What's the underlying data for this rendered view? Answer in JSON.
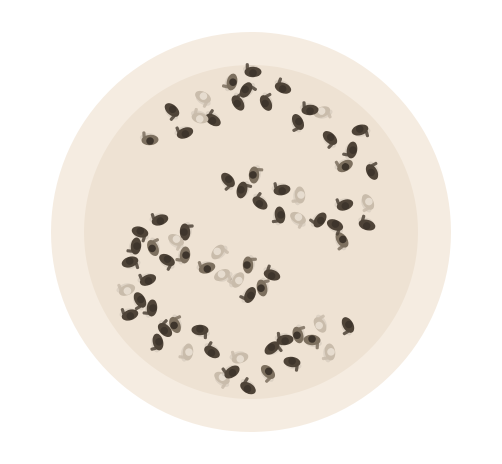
{
  "scene": {
    "description_free": true,
    "palette": {
      "page": "#ffffff",
      "outer_disc": "#f5ece1",
      "inner_disc": "#eee2d3",
      "figure_dark": "#4f4438",
      "figure_mid": "#7d705f",
      "figure_light": "#c9bcab",
      "head_dark": "#3e352c",
      "head_light": "#e6dccf"
    },
    "crowd": {
      "arrangement": "serpentine",
      "figure_count": 86
    }
  }
}
